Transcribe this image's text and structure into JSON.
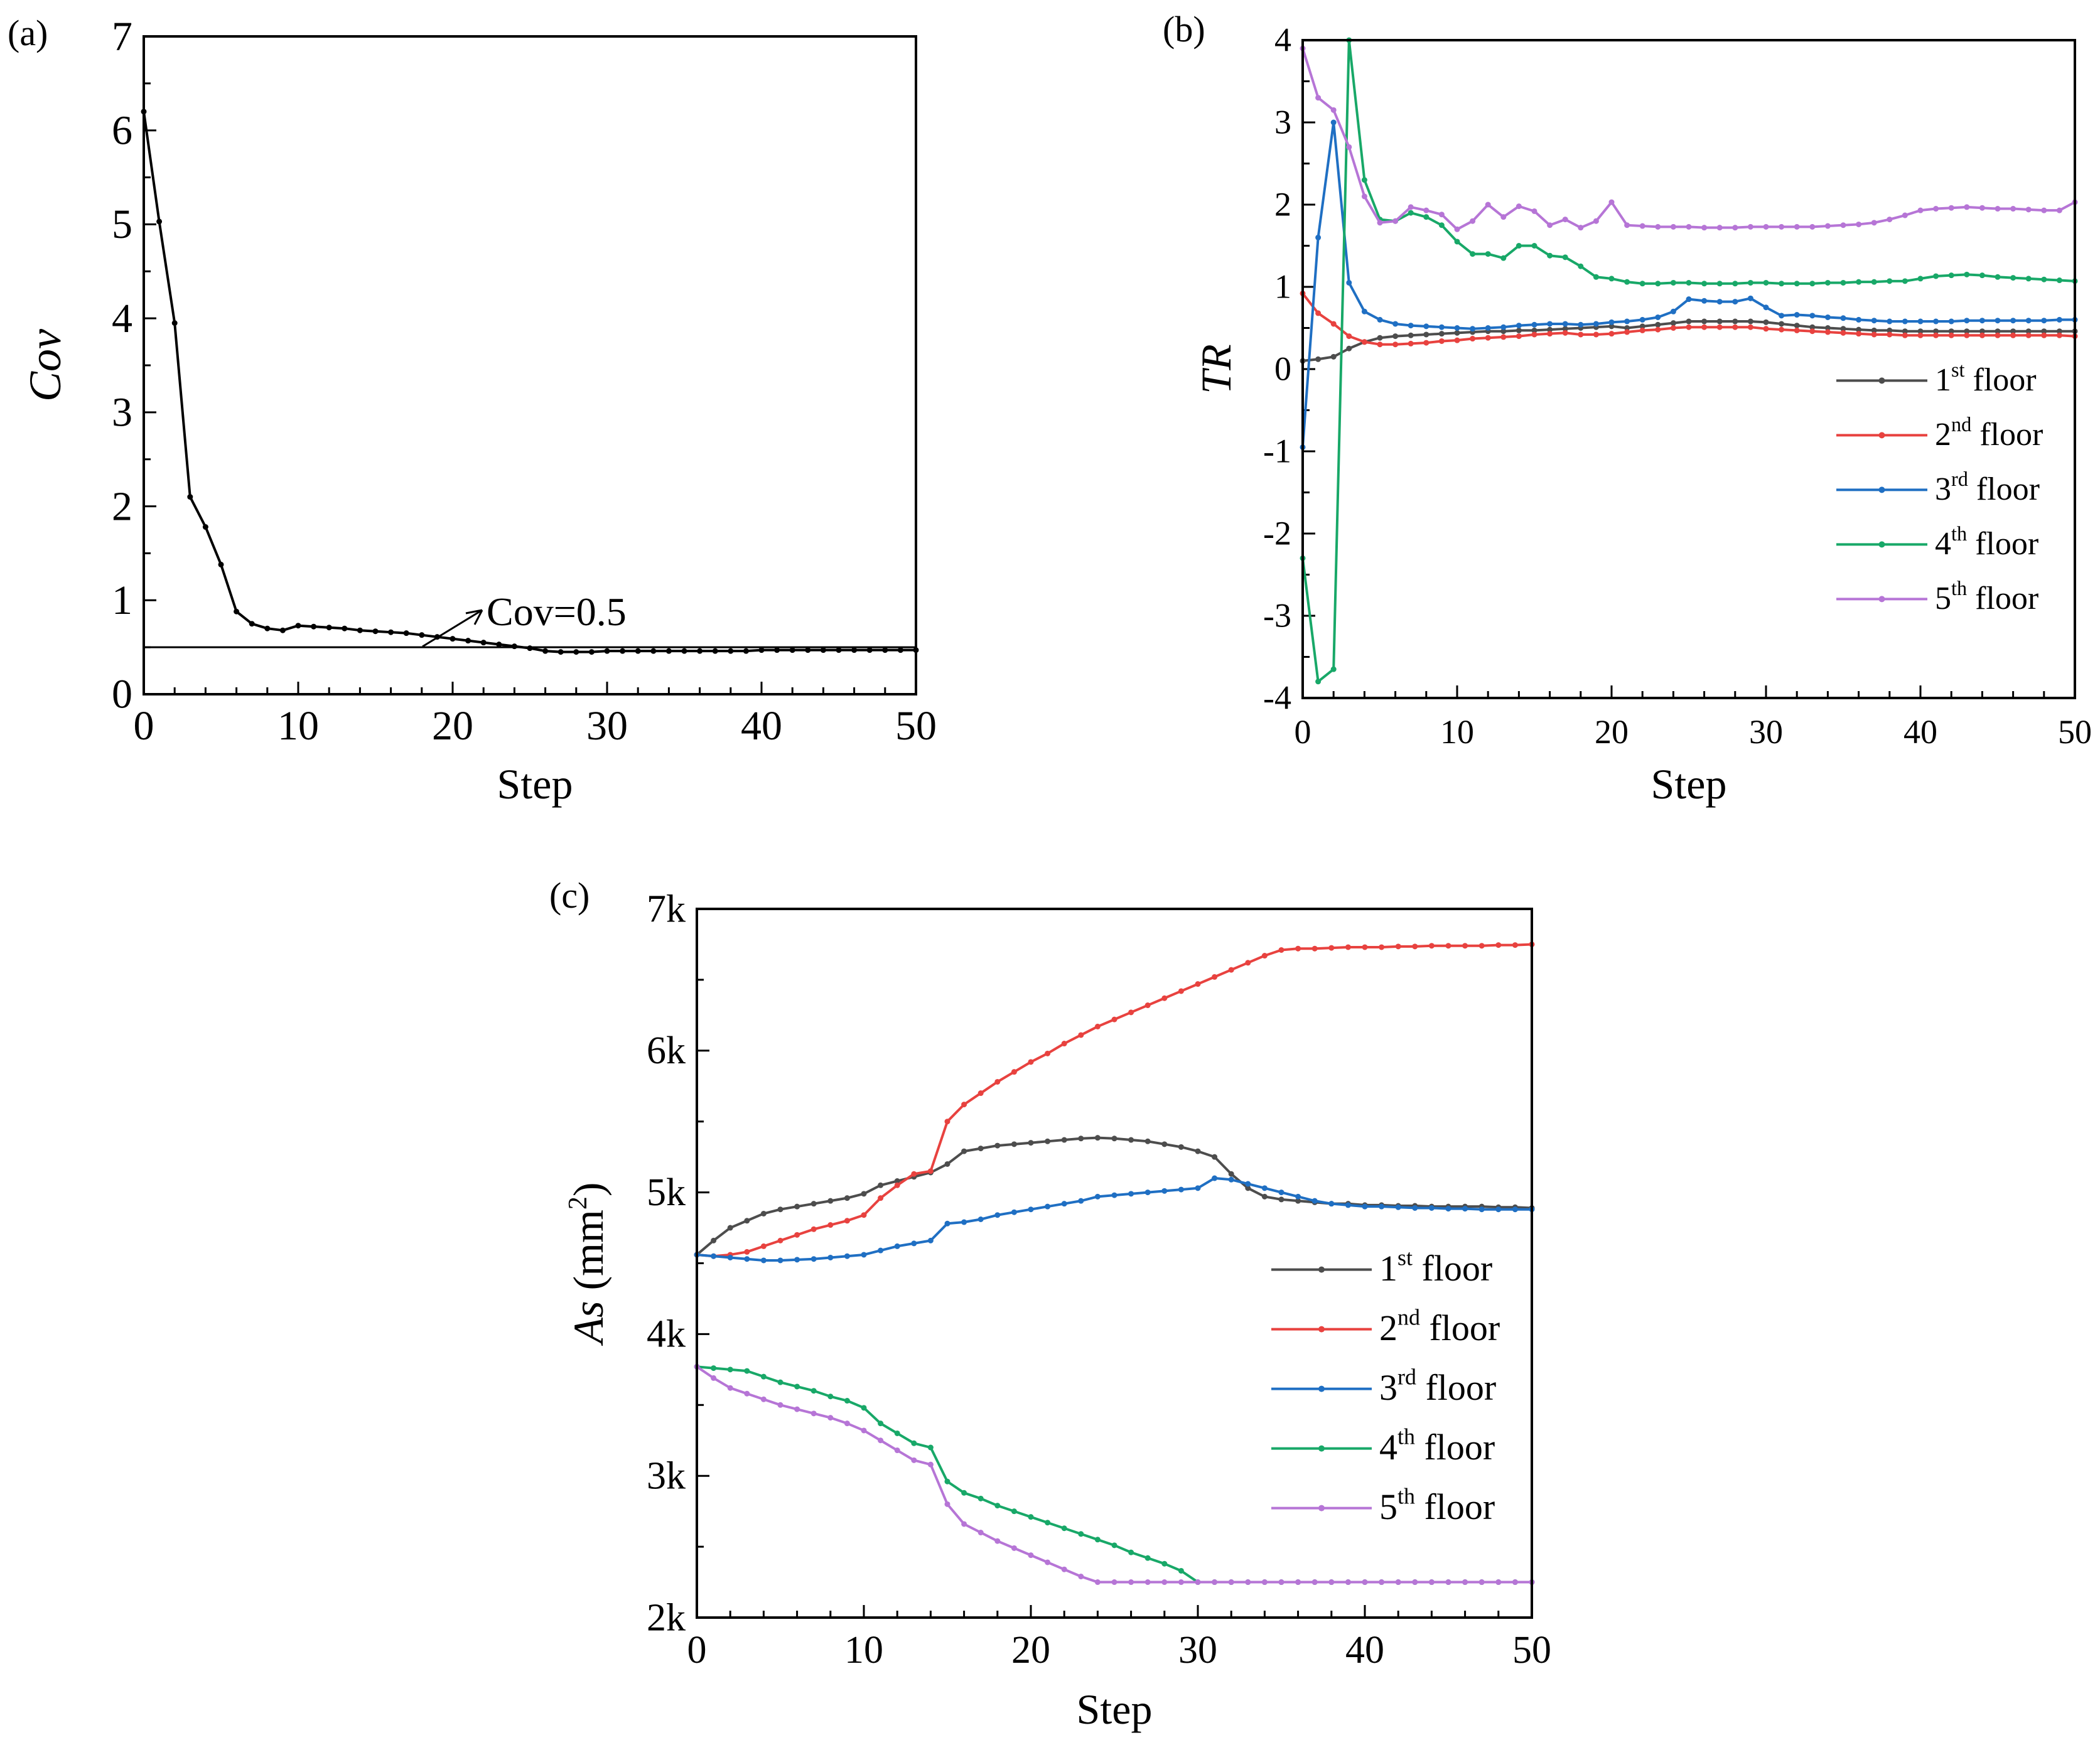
{
  "chart_data": [
    {
      "type": "line",
      "panel_label": "(a)",
      "xlabel": "Step",
      "ylabel": "Cov",
      "xlim": [
        0,
        50
      ],
      "ylim": [
        0,
        7
      ],
      "x_ticks": [
        "0",
        "10",
        "20",
        "30",
        "40",
        "50"
      ],
      "y_ticks": [
        "0",
        "1",
        "2",
        "3",
        "4",
        "5",
        "6",
        "7"
      ],
      "grid": false,
      "annotation": "Cov=0.5",
      "reference_line": 0.5,
      "series": [
        {
          "color": "#000000",
          "values": [
            6.2,
            5.03,
            3.95,
            2.1,
            1.78,
            1.38,
            0.88,
            0.75,
            0.7,
            0.68,
            0.73,
            0.72,
            0.71,
            0.7,
            0.68,
            0.67,
            0.66,
            0.65,
            0.63,
            0.61,
            0.59,
            0.57,
            0.55,
            0.53,
            0.51,
            0.49,
            0.46,
            0.45,
            0.45,
            0.45,
            0.46,
            0.46,
            0.46,
            0.46,
            0.46,
            0.46,
            0.46,
            0.46,
            0.46,
            0.46,
            0.47,
            0.47,
            0.47,
            0.47,
            0.47,
            0.47,
            0.47,
            0.47,
            0.47,
            0.47,
            0.47
          ]
        }
      ]
    },
    {
      "type": "line",
      "panel_label": "(b)",
      "xlabel": "Step",
      "ylabel": "TR",
      "xlim": [
        0,
        50
      ],
      "ylim": [
        -4,
        4
      ],
      "x_ticks": [
        "0",
        "10",
        "20",
        "30",
        "40",
        "50"
      ],
      "y_ticks": [
        "-4",
        "-3",
        "-2",
        "-1",
        "0",
        "1",
        "2",
        "3",
        "4"
      ],
      "grid": false,
      "legend_position": "right",
      "series": [
        {
          "name": "1st floor",
          "color": "#4d4d4d",
          "values": [
            0.1,
            0.12,
            0.15,
            0.25,
            0.33,
            0.38,
            0.4,
            0.41,
            0.42,
            0.43,
            0.44,
            0.45,
            0.46,
            0.46,
            0.47,
            0.47,
            0.48,
            0.49,
            0.5,
            0.51,
            0.52,
            0.5,
            0.52,
            0.54,
            0.56,
            0.58,
            0.58,
            0.58,
            0.58,
            0.58,
            0.57,
            0.55,
            0.53,
            0.51,
            0.5,
            0.49,
            0.48,
            0.47,
            0.47,
            0.46,
            0.46,
            0.46,
            0.46,
            0.46,
            0.46,
            0.46,
            0.46,
            0.46,
            0.46,
            0.46,
            0.46
          ]
        },
        {
          "name": "2nd floor",
          "color": "#e8423f",
          "values": [
            0.92,
            0.68,
            0.55,
            0.4,
            0.33,
            0.3,
            0.3,
            0.31,
            0.32,
            0.34,
            0.35,
            0.37,
            0.38,
            0.39,
            0.4,
            0.42,
            0.43,
            0.44,
            0.42,
            0.42,
            0.43,
            0.45,
            0.47,
            0.48,
            0.5,
            0.51,
            0.51,
            0.51,
            0.51,
            0.51,
            0.49,
            0.48,
            0.47,
            0.46,
            0.45,
            0.44,
            0.43,
            0.42,
            0.42,
            0.41,
            0.41,
            0.41,
            0.41,
            0.41,
            0.41,
            0.41,
            0.41,
            0.41,
            0.41,
            0.41,
            0.4
          ]
        },
        {
          "name": "3rd floor",
          "color": "#1f6fc3",
          "values": [
            -0.95,
            1.6,
            3.0,
            1.05,
            0.7,
            0.6,
            0.55,
            0.53,
            0.52,
            0.51,
            0.5,
            0.49,
            0.5,
            0.51,
            0.53,
            0.54,
            0.55,
            0.55,
            0.54,
            0.55,
            0.57,
            0.58,
            0.6,
            0.63,
            0.7,
            0.85,
            0.83,
            0.82,
            0.82,
            0.86,
            0.75,
            0.65,
            0.66,
            0.65,
            0.63,
            0.62,
            0.6,
            0.59,
            0.58,
            0.58,
            0.58,
            0.58,
            0.58,
            0.59,
            0.59,
            0.59,
            0.59,
            0.59,
            0.59,
            0.6,
            0.6
          ]
        },
        {
          "name": "4th floor",
          "color": "#18a868",
          "values": [
            -2.3,
            -3.8,
            -3.65,
            4.0,
            2.3,
            1.82,
            1.8,
            1.9,
            1.85,
            1.75,
            1.55,
            1.4,
            1.4,
            1.35,
            1.5,
            1.5,
            1.38,
            1.36,
            1.25,
            1.12,
            1.1,
            1.06,
            1.04,
            1.04,
            1.05,
            1.05,
            1.04,
            1.04,
            1.04,
            1.05,
            1.05,
            1.04,
            1.04,
            1.04,
            1.05,
            1.05,
            1.06,
            1.06,
            1.07,
            1.07,
            1.1,
            1.13,
            1.14,
            1.15,
            1.14,
            1.12,
            1.11,
            1.1,
            1.09,
            1.08,
            1.07
          ]
        },
        {
          "name": "5th floor",
          "color": "#b675d6",
          "values": [
            3.9,
            3.3,
            3.15,
            2.7,
            2.1,
            1.78,
            1.8,
            1.97,
            1.93,
            1.88,
            1.7,
            1.8,
            2.0,
            1.85,
            1.98,
            1.92,
            1.75,
            1.82,
            1.72,
            1.8,
            2.03,
            1.75,
            1.74,
            1.73,
            1.73,
            1.73,
            1.72,
            1.72,
            1.72,
            1.73,
            1.73,
            1.73,
            1.73,
            1.73,
            1.74,
            1.75,
            1.76,
            1.78,
            1.82,
            1.87,
            1.93,
            1.95,
            1.96,
            1.97,
            1.96,
            1.95,
            1.95,
            1.94,
            1.93,
            1.93,
            2.03
          ]
        }
      ]
    },
    {
      "type": "line",
      "panel_label": "(c)",
      "xlabel": "Step",
      "ylabel": "As (mm2)",
      "xlim": [
        0,
        50
      ],
      "ylim": [
        2000,
        7000
      ],
      "x_ticks": [
        "0",
        "10",
        "20",
        "30",
        "40",
        "50"
      ],
      "y_ticks": [
        "2k",
        "3k",
        "4k",
        "5k",
        "6k",
        "7k"
      ],
      "grid": false,
      "legend_position": "right",
      "series": [
        {
          "name": "1st floor",
          "color": "#4d4d4d",
          "values": [
            4560,
            4660,
            4750,
            4800,
            4850,
            4880,
            4900,
            4920,
            4940,
            4960,
            4990,
            5050,
            5080,
            5110,
            5140,
            5200,
            5290,
            5310,
            5330,
            5340,
            5350,
            5360,
            5370,
            5380,
            5385,
            5380,
            5370,
            5360,
            5340,
            5320,
            5290,
            5250,
            5130,
            5030,
            4970,
            4950,
            4940,
            4930,
            4920,
            4920,
            4910,
            4910,
            4905,
            4905,
            4900,
            4900,
            4900,
            4900,
            4895,
            4895,
            4890
          ]
        },
        {
          "name": "2nd floor",
          "color": "#e8423f",
          "values": [
            4560,
            4550,
            4560,
            4580,
            4620,
            4660,
            4700,
            4740,
            4770,
            4800,
            4840,
            4960,
            5050,
            5130,
            5150,
            5500,
            5620,
            5700,
            5780,
            5850,
            5920,
            5980,
            6050,
            6110,
            6170,
            6220,
            6270,
            6320,
            6370,
            6420,
            6470,
            6520,
            6570,
            6620,
            6670,
            6710,
            6720,
            6720,
            6725,
            6730,
            6730,
            6730,
            6735,
            6735,
            6740,
            6740,
            6740,
            6740,
            6745,
            6745,
            6750
          ]
        },
        {
          "name": "3rd floor",
          "color": "#1f6fc3",
          "values": [
            4560,
            4550,
            4540,
            4530,
            4520,
            4520,
            4525,
            4530,
            4540,
            4550,
            4560,
            4590,
            4620,
            4640,
            4660,
            4780,
            4790,
            4810,
            4840,
            4860,
            4880,
            4900,
            4920,
            4940,
            4970,
            4980,
            4990,
            5000,
            5010,
            5020,
            5030,
            5100,
            5090,
            5060,
            5030,
            5000,
            4970,
            4940,
            4920,
            4910,
            4900,
            4900,
            4895,
            4890,
            4890,
            4885,
            4885,
            4880,
            4880,
            4880,
            4880
          ]
        },
        {
          "name": "4th floor",
          "color": "#18a868",
          "values": [
            3770,
            3760,
            3750,
            3740,
            3700,
            3660,
            3630,
            3600,
            3560,
            3530,
            3480,
            3370,
            3300,
            3230,
            3200,
            2960,
            2880,
            2840,
            2790,
            2750,
            2710,
            2670,
            2630,
            2590,
            2550,
            2510,
            2460,
            2420,
            2380,
            2330,
            2250,
            2250,
            2250,
            2250,
            2250,
            2250,
            2250,
            2250,
            2250,
            2250,
            2250,
            2250,
            2250,
            2250,
            2250,
            2250,
            2250,
            2250,
            2250,
            2250,
            2250
          ]
        },
        {
          "name": "5th floor",
          "color": "#b675d6",
          "values": [
            3770,
            3690,
            3620,
            3580,
            3540,
            3500,
            3470,
            3440,
            3410,
            3370,
            3320,
            3250,
            3180,
            3110,
            3080,
            2800,
            2660,
            2600,
            2540,
            2490,
            2440,
            2390,
            2340,
            2290,
            2250,
            2250,
            2250,
            2250,
            2250,
            2250,
            2250,
            2250,
            2250,
            2250,
            2250,
            2250,
            2250,
            2250,
            2250,
            2250,
            2250,
            2250,
            2250,
            2250,
            2250,
            2250,
            2250,
            2250,
            2250,
            2250,
            2250
          ]
        }
      ]
    }
  ],
  "legend_labels": [
    {
      "num": "1",
      "sup": "st",
      "rest": " floor"
    },
    {
      "num": "2",
      "sup": "nd",
      "rest": " floor"
    },
    {
      "num": "3",
      "sup": "rd",
      "rest": " floor"
    },
    {
      "num": "4",
      "sup": "th",
      "rest": " floor"
    },
    {
      "num": "5",
      "sup": "th",
      "rest": " floor"
    }
  ],
  "c_ylabel_parts": {
    "italic": "As",
    "open": " (mm",
    "sup": "2",
    "close": ")"
  }
}
